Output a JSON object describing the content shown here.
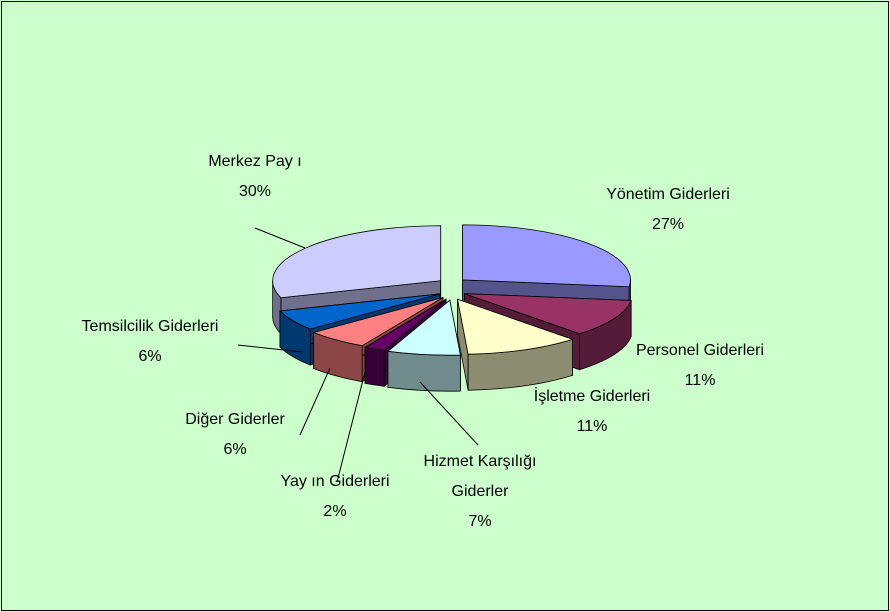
{
  "chart_data": {
    "type": "pie3d",
    "categories": [
      "Yönetim Giderleri",
      "Personel Giderleri",
      "İşletme Giderleri",
      "Hizmet Karşılığı Giderler",
      "Yay ın Giderleri",
      "Diğer Giderler",
      "Temsilcilik Giderleri",
      "Merkez Pay ı"
    ],
    "values": [
      27,
      11,
      11,
      7,
      2,
      6,
      6,
      30
    ],
    "value_labels": [
      "27%",
      "11%",
      "11%",
      "7%",
      "2%",
      "6%",
      "6%",
      "30%"
    ],
    "colors": [
      "#9999ff",
      "#993366",
      "#ffffcc",
      "#ccffff",
      "#660066",
      "#ff8080",
      "#0066cc",
      "#ccccff"
    ]
  }
}
